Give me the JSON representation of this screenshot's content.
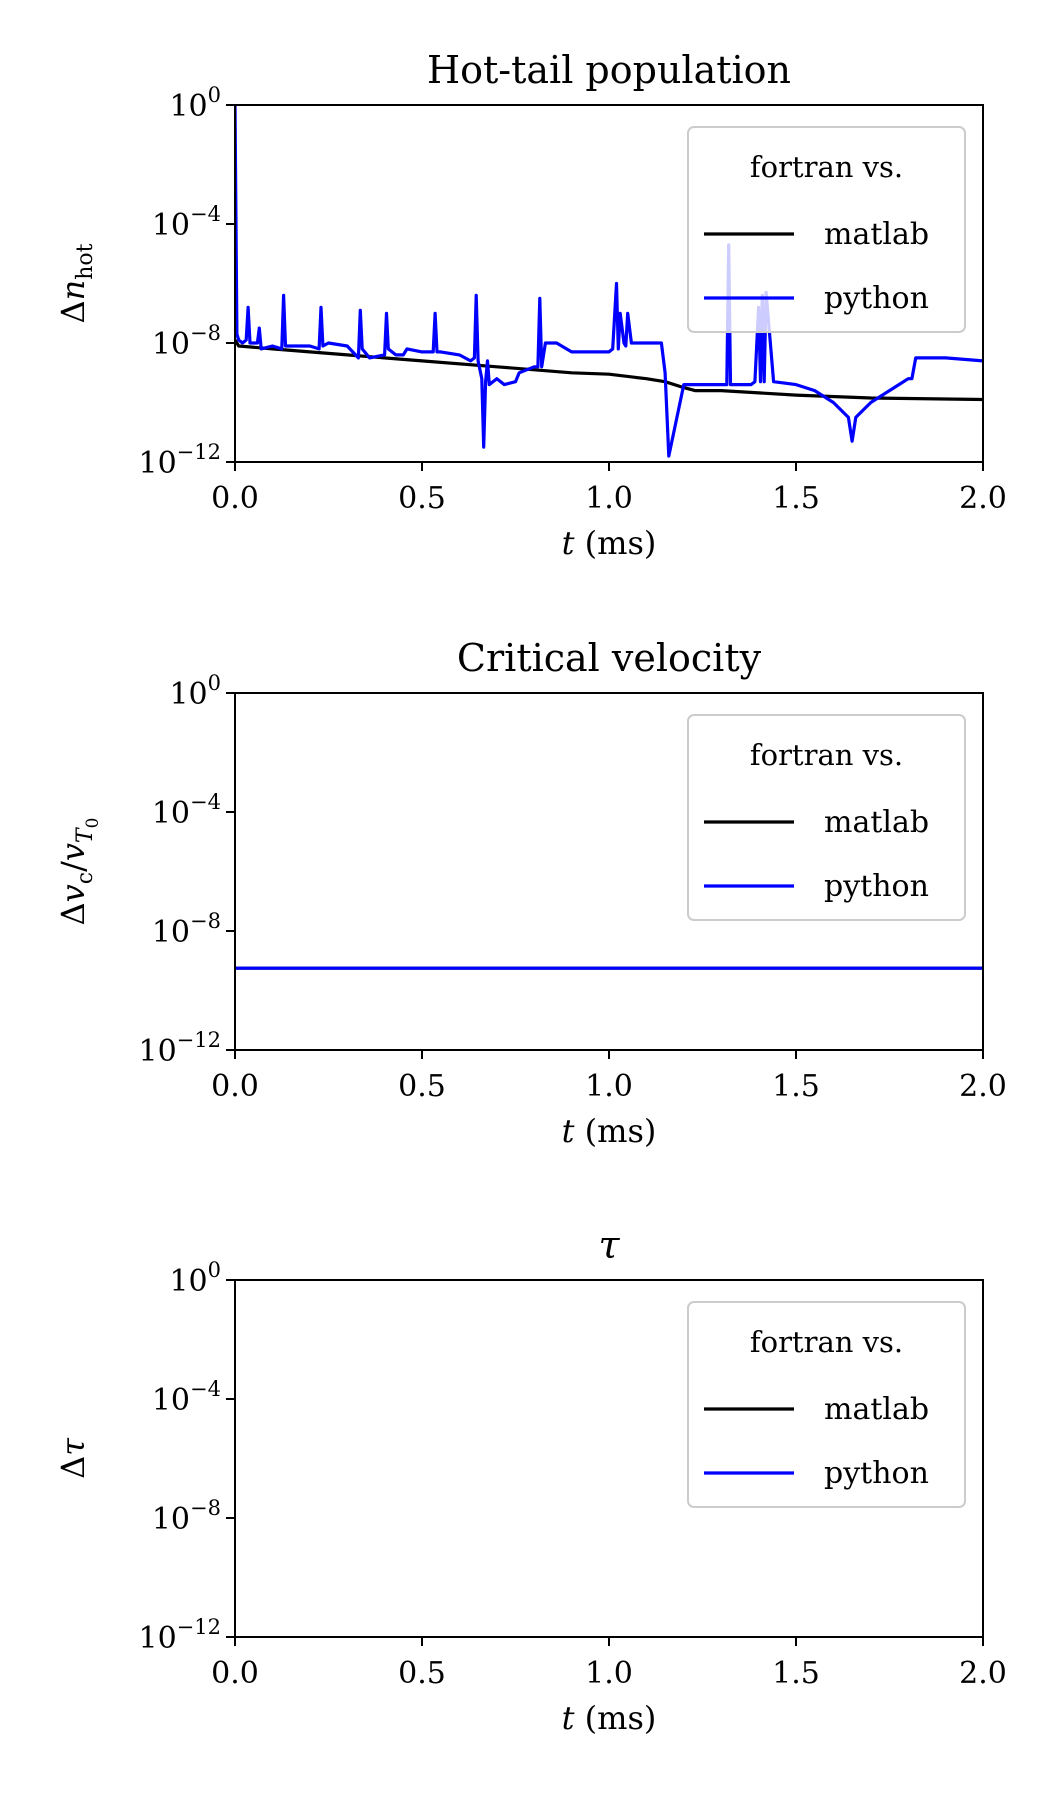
{
  "chart_data": [
    {
      "type": "line",
      "title": "Hot-tail population",
      "ylabel": "Δn",
      "ylabel_sub": "hot",
      "xlabel_var": "t",
      "xlabel_unit": "(ms)",
      "xlim": [
        0,
        2.0
      ],
      "ylim_exp": [
        -12,
        0
      ],
      "yscale": "log",
      "xticks": [
        "0.0",
        "0.5",
        "1.0",
        "1.5",
        "2.0"
      ],
      "yticks": [
        {
          "base": "10",
          "exp": "0"
        },
        {
          "base": "10",
          "exp": "−4"
        },
        {
          "base": "10",
          "exp": "−8"
        },
        {
          "base": "10",
          "exp": "−12"
        }
      ],
      "legend": {
        "title": "fortran vs.",
        "placement": "upper right"
      },
      "series": [
        {
          "name": "matlab",
          "color": "#000000",
          "x": [
            0.0,
            0.01,
            0.1,
            0.3,
            0.5,
            0.7,
            0.9,
            1.0,
            1.1,
            1.15,
            1.2,
            1.23,
            1.3,
            1.5,
            1.7,
            2.0
          ],
          "logy": [
            -7.9,
            -8.1,
            -8.2,
            -8.4,
            -8.6,
            -8.8,
            -9.0,
            -9.05,
            -9.2,
            -9.3,
            -9.5,
            -9.6,
            -9.6,
            -9.75,
            -9.85,
            -9.9
          ]
        },
        {
          "name": "python",
          "color": "#0000ff",
          "x": [
            0.0,
            0.005,
            0.01,
            0.02,
            0.03,
            0.035,
            0.04,
            0.06,
            0.065,
            0.07,
            0.1,
            0.125,
            0.13,
            0.135,
            0.15,
            0.2,
            0.225,
            0.23,
            0.235,
            0.25,
            0.3,
            0.33,
            0.335,
            0.34,
            0.36,
            0.4,
            0.405,
            0.41,
            0.43,
            0.45,
            0.46,
            0.5,
            0.53,
            0.535,
            0.54,
            0.55,
            0.6,
            0.63,
            0.64,
            0.645,
            0.65,
            0.66,
            0.665,
            0.67,
            0.675,
            0.68,
            0.7,
            0.72,
            0.75,
            0.76,
            0.8,
            0.81,
            0.815,
            0.82,
            0.83,
            0.86,
            0.9,
            1.0,
            1.01,
            1.02,
            1.025,
            1.03,
            1.04,
            1.045,
            1.05,
            1.06,
            1.1,
            1.14,
            1.15,
            1.16,
            1.2,
            1.25,
            1.3,
            1.315,
            1.32,
            1.325,
            1.33,
            1.36,
            1.38,
            1.39,
            1.4,
            1.405,
            1.41,
            1.415,
            1.42,
            1.44,
            1.5,
            1.55,
            1.6,
            1.64,
            1.65,
            1.66,
            1.7,
            1.75,
            1.8,
            1.81,
            1.82,
            1.85,
            1.9,
            2.0
          ],
          "logy": [
            0,
            -7.7,
            -7.9,
            -8.0,
            -7.9,
            -6.8,
            -8.0,
            -8.0,
            -7.5,
            -8.2,
            -8.1,
            -8.2,
            -6.4,
            -8.1,
            -8.1,
            -8.1,
            -8.2,
            -6.8,
            -8.1,
            -8.0,
            -8.1,
            -8.5,
            -6.9,
            -8.2,
            -8.5,
            -8.4,
            -7.0,
            -8.2,
            -8.4,
            -8.4,
            -8.2,
            -8.3,
            -8.3,
            -7.0,
            -8.3,
            -8.3,
            -8.4,
            -8.6,
            -8.5,
            -6.4,
            -8.6,
            -9.2,
            -11.5,
            -9.3,
            -8.6,
            -9.4,
            -9.2,
            -9.4,
            -9.3,
            -9.0,
            -8.8,
            -8.8,
            -6.5,
            -8.8,
            -8.0,
            -8.0,
            -8.3,
            -8.3,
            -8.2,
            -6.0,
            -8.2,
            -7.0,
            -8.0,
            -8.1,
            -7.0,
            -8.0,
            -8.0,
            -8.0,
            -9.0,
            -11.8,
            -9.4,
            -9.4,
            -9.4,
            -9.4,
            -4.7,
            -9.4,
            -9.4,
            -9.4,
            -9.4,
            -9.3,
            -6.8,
            -9.3,
            -6.4,
            -9.3,
            -6.3,
            -9.3,
            -9.4,
            -9.6,
            -10.0,
            -10.5,
            -11.3,
            -10.5,
            -10.0,
            -9.6,
            -9.2,
            -9.2,
            -8.5,
            -8.5,
            -8.5,
            -8.6
          ]
        }
      ]
    },
    {
      "type": "line",
      "title": "Critical velocity",
      "ylabel": "Δv",
      "ylabel_sub": "c",
      "ylabel_tail": "/v",
      "ylabel_tail_sub": "T",
      "ylabel_tail_subsub": "0",
      "xlabel_var": "t",
      "xlabel_unit": "(ms)",
      "xlim": [
        0,
        2.0
      ],
      "ylim_exp": [
        -12,
        0
      ],
      "yscale": "log",
      "xticks": [
        "0.0",
        "0.5",
        "1.0",
        "1.5",
        "2.0"
      ],
      "yticks": [
        {
          "base": "10",
          "exp": "0"
        },
        {
          "base": "10",
          "exp": "−4"
        },
        {
          "base": "10",
          "exp": "−8"
        },
        {
          "base": "10",
          "exp": "−12"
        }
      ],
      "legend": {
        "title": "fortran vs.",
        "placement": "upper right"
      },
      "series": [
        {
          "name": "matlab",
          "color": "#000000",
          "x": [
            0.0,
            2.0
          ],
          "logy": [
            -9.25,
            -9.25
          ]
        },
        {
          "name": "python",
          "color": "#0000ff",
          "x": [
            0.0,
            2.0
          ],
          "logy": [
            -9.25,
            -9.25
          ]
        }
      ]
    },
    {
      "type": "line",
      "title": "τ",
      "ylabel": "Δτ",
      "xlabel_var": "t",
      "xlabel_unit": "(ms)",
      "xlim": [
        0,
        2.0
      ],
      "ylim_exp": [
        -12,
        0
      ],
      "yscale": "log",
      "xticks": [
        "0.0",
        "0.5",
        "1.0",
        "1.5",
        "2.0"
      ],
      "yticks": [
        {
          "base": "10",
          "exp": "0"
        },
        {
          "base": "10",
          "exp": "−4"
        },
        {
          "base": "10",
          "exp": "−8"
        },
        {
          "base": "10",
          "exp": "−12"
        }
      ],
      "legend": {
        "title": "fortran vs.",
        "placement": "upper right"
      },
      "series": [
        {
          "name": "matlab",
          "color": "#000000",
          "x": [],
          "logy": []
        },
        {
          "name": "python",
          "color": "#0000ff",
          "x": [],
          "logy": []
        }
      ]
    }
  ]
}
